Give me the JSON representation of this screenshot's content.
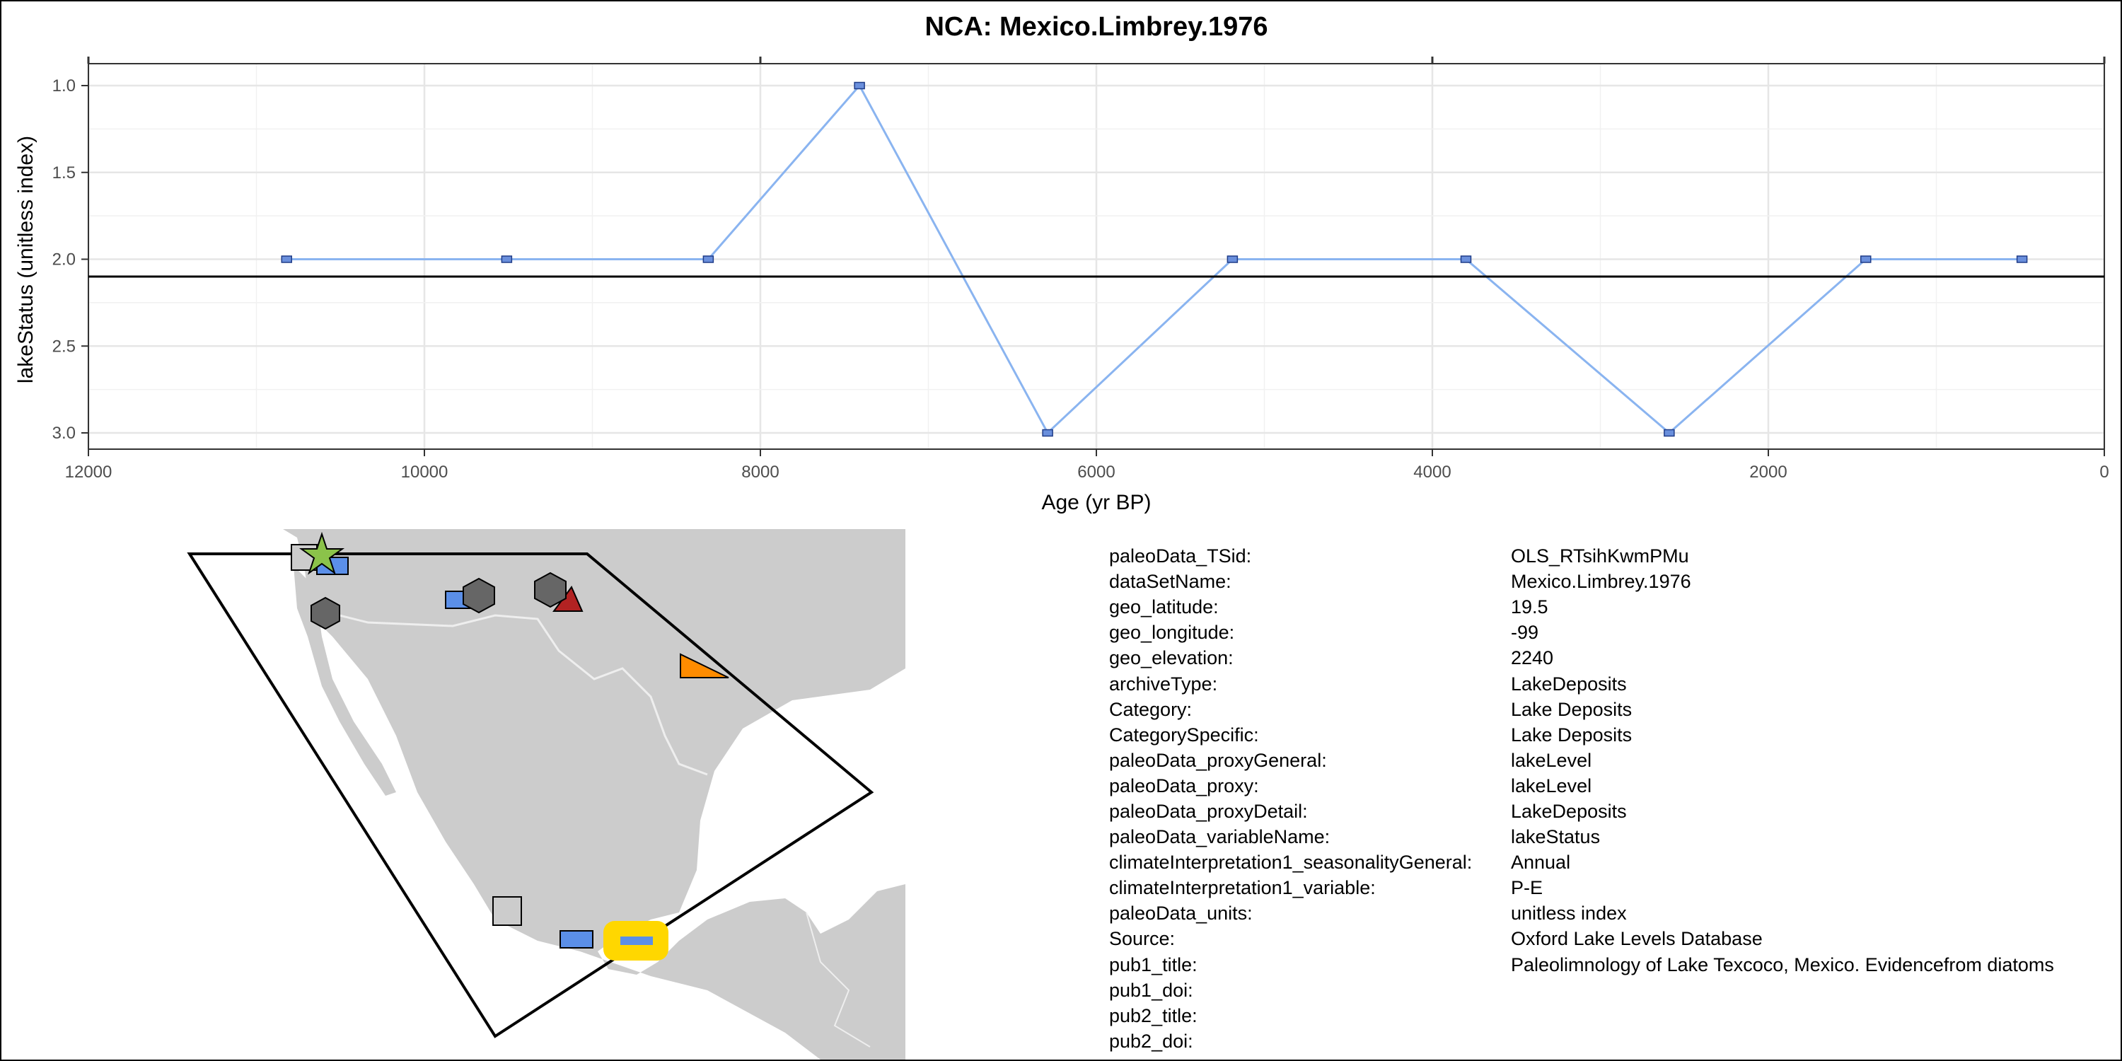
{
  "chart_data": {
    "type": "line",
    "title": "NCA: Mexico.Limbrey.1976",
    "xlabel": "Age (yr BP)",
    "ylabel": "lakeStatus (unitless index)",
    "x_reversed": true,
    "y_reversed": true,
    "xlim": [
      12000,
      0
    ],
    "ylim": [
      1,
      3
    ],
    "x_ticks": [
      "12000",
      "10000",
      "8000",
      "6000",
      "4000",
      "2000",
      "0"
    ],
    "y_ticks": [
      "1.0",
      "1.5",
      "2.0",
      "2.5",
      "3.0"
    ],
    "grid": true,
    "series": [
      {
        "color": "#8ab4f0",
        "marker_color": "#6a8fdc",
        "x": [
          10820,
          9510,
          8310,
          7410,
          6290,
          5190,
          3800,
          2590,
          1420,
          490
        ],
        "y": [
          2,
          2,
          2,
          1,
          3,
          2,
          2,
          3,
          2,
          2
        ]
      }
    ],
    "reference_line": {
      "y": 2.1,
      "color": "#000000"
    }
  },
  "map": {
    "land_color": "#cccccc",
    "region_outline_color": "#000000",
    "markers": [
      {
        "shape": "star",
        "color": "#8bc34a"
      },
      {
        "shape": "square",
        "color": "#cccccc"
      },
      {
        "shape": "rectangle",
        "color": "#5b8fe8"
      },
      {
        "shape": "hexagon",
        "color": "#666666"
      },
      {
        "shape": "triangle",
        "color": "#b22222"
      },
      {
        "shape": "triangle",
        "color": "#ff8c00"
      },
      {
        "shape": "highlight-site",
        "color": "#ffd700"
      }
    ]
  },
  "metadata": [
    {
      "key": "paleoData_TSid:",
      "value": "OLS_RTsihKwmPMu"
    },
    {
      "key": "dataSetName:",
      "value": "Mexico.Limbrey.1976"
    },
    {
      "key": "geo_latitude:",
      "value": "19.5"
    },
    {
      "key": "geo_longitude:",
      "value": "-99"
    },
    {
      "key": "geo_elevation:",
      "value": "2240"
    },
    {
      "key": "archiveType:",
      "value": "LakeDeposits"
    },
    {
      "key": "Category:",
      "value": "Lake Deposits"
    },
    {
      "key": "CategorySpecific:",
      "value": "Lake Deposits"
    },
    {
      "key": "paleoData_proxyGeneral:",
      "value": "lakeLevel"
    },
    {
      "key": "paleoData_proxy:",
      "value": "lakeLevel"
    },
    {
      "key": "paleoData_proxyDetail:",
      "value": "LakeDeposits"
    },
    {
      "key": "paleoData_variableName:",
      "value": "lakeStatus"
    },
    {
      "key": "climateInterpretation1_seasonalityGeneral:",
      "value": "Annual"
    },
    {
      "key": "climateInterpretation1_variable:",
      "value": "P-E"
    },
    {
      "key": "paleoData_units:",
      "value": "unitless index"
    },
    {
      "key": "Source:",
      "value": "Oxford Lake Levels Database"
    },
    {
      "key": "pub1_title:",
      "value": "Paleolimnology of Lake Texcoco, Mexico. Evidencefrom diatoms"
    },
    {
      "key": "pub1_doi:",
      "value": ""
    },
    {
      "key": "pub2_title:",
      "value": ""
    },
    {
      "key": "pub2_doi:",
      "value": ""
    }
  ]
}
